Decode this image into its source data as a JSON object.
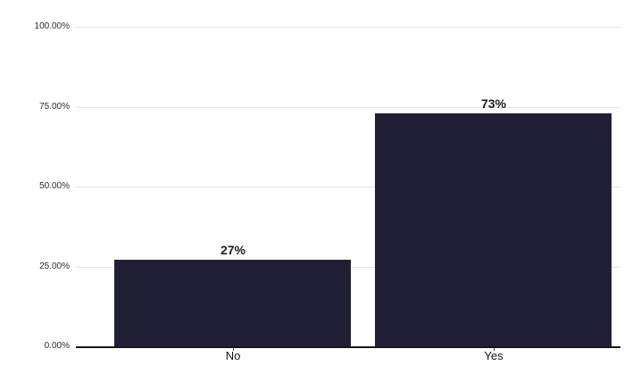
{
  "chart_data": {
    "type": "bar",
    "title": "",
    "xlabel": "",
    "ylabel": "",
    "categories": [
      "No",
      "Yes"
    ],
    "values": [
      27,
      73
    ],
    "value_labels": [
      "27%",
      "73%"
    ],
    "y_ticks": [
      {
        "value": 100,
        "label": "100.00%"
      },
      {
        "value": 75,
        "label": "75.00%"
      },
      {
        "value": 50,
        "label": "50.00%"
      },
      {
        "value": 25,
        "label": "25.00%"
      },
      {
        "value": 0,
        "label": "0.00%"
      }
    ],
    "ylim": [
      0,
      100
    ],
    "grid": true,
    "legend": false,
    "colors": {
      "bar": "#211f35",
      "gridline": "#e4e4e4",
      "axis_line": "#161616",
      "tick_label": "#2b2b2b",
      "category_label": "#131313",
      "value_label": "#1c1c1c",
      "background": "#ffffff"
    }
  }
}
